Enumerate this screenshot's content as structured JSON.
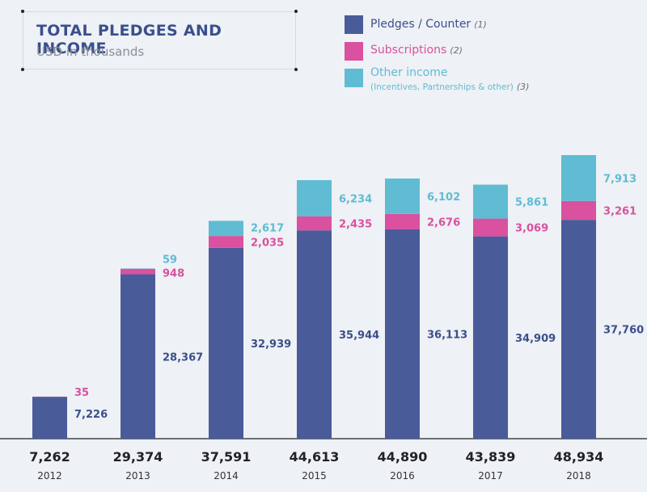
{
  "chart_data": {
    "type": "bar",
    "stacked": true,
    "title": "TOTAL PLEDGES AND INCOME",
    "subtitle": "USD in thousands",
    "categories": [
      "2012",
      "2013",
      "2014",
      "2015",
      "2016",
      "2017",
      "2018"
    ],
    "totals": [
      "7,262",
      "29,374",
      "37,591",
      "44,613",
      "44,890",
      "43,839",
      "48,934"
    ],
    "series": [
      {
        "name": "Pledges / Counter",
        "note": "(1)",
        "color": "#4a5b9a",
        "values": [
          7226,
          28367,
          32939,
          35944,
          36113,
          34909,
          37760
        ],
        "labels": [
          "7,226",
          "28,367",
          "32,939",
          "35,944",
          "36,113",
          "34,909",
          "37,760"
        ]
      },
      {
        "name": "Subscriptions",
        "note": "(2)",
        "color": "#d9519f",
        "values": [
          35,
          948,
          2035,
          2435,
          2676,
          3069,
          3261
        ],
        "labels": [
          "35",
          "948",
          "2,035",
          "2,435",
          "2,676",
          "3,069",
          "3,261"
        ]
      },
      {
        "name": "Other income",
        "sublabel": "(Incentives, Partnerships & other)",
        "note": "(3)",
        "color": "#5fbcd3",
        "values": [
          0,
          59,
          2617,
          6234,
          6102,
          5861,
          7913
        ],
        "labels": [
          "",
          "59",
          "2,617",
          "6,234",
          "6,102",
          "5,861",
          "7,913"
        ]
      }
    ],
    "grid": false,
    "legend_position": "top-right",
    "ylim": [
      0,
      48934
    ]
  },
  "colors": {
    "background": "#eef1f5",
    "title": "#3b4f8c",
    "axis": "#222222"
  }
}
